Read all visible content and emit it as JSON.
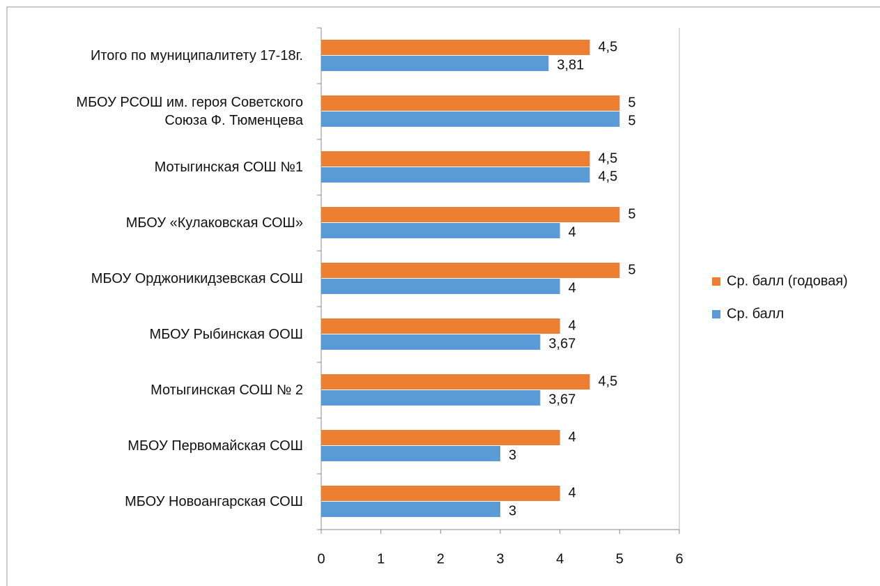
{
  "chart_data": {
    "type": "bar",
    "orientation": "horizontal",
    "categories": [
      "Итого по муниципалитету 17-18г.",
      "МБОУ РСОШ им. героя Советского\nСоюза Ф. Тюменцева",
      "Мотыгинская СОШ №1",
      "МБОУ «Кулаковская СОШ»",
      "МБОУ Орджоникидзевская СОШ",
      "МБОУ Рыбинская ООШ",
      "Мотыгинская СОШ  № 2",
      "МБОУ Первомайская СОШ",
      "МБОУ Новоангарская СОШ"
    ],
    "series": [
      {
        "name": "Ср. балл (годовая)",
        "color": "#ed7d31",
        "values": [
          4.5,
          5,
          4.5,
          5,
          5,
          4,
          4.5,
          4,
          4
        ],
        "value_labels": [
          "4,5",
          "5",
          "4,5",
          "5",
          "5",
          "4",
          "4,5",
          "4",
          "4"
        ]
      },
      {
        "name": "Ср. балл",
        "color": "#5b9bd5",
        "values": [
          3.81,
          5,
          4.5,
          4,
          4,
          3.67,
          3.67,
          3,
          3
        ],
        "value_labels": [
          "3,81",
          "5",
          "4,5",
          "4",
          "4",
          "3,67",
          "3,67",
          "3",
          "3"
        ]
      }
    ],
    "xlim": [
      0,
      6
    ],
    "xticks": [
      0,
      1,
      2,
      3,
      4,
      5,
      6
    ],
    "grid": false,
    "legend": "right"
  }
}
